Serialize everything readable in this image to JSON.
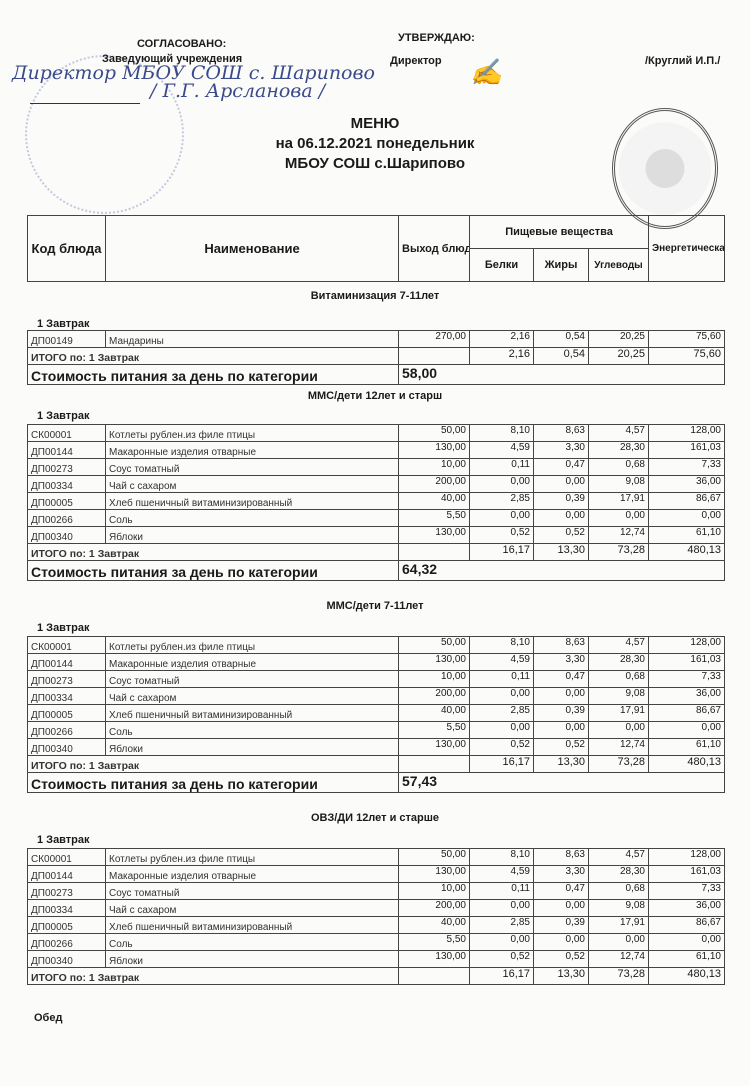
{
  "approval": {
    "agreed_label": "СОГЛАСОВАНО:",
    "agreed_position": "Заведующий  учреждения",
    "agreed_handwritten": "Директор МБОУ СОШ с. Шарипово",
    "agreed_handwritten_name": "/ Г.Г. Арсланова /",
    "approve_label": "УТВЕРЖДАЮ:",
    "approve_position": "Директор",
    "approve_name": "/Круглий И.П./"
  },
  "title": {
    "line1": "МЕНЮ",
    "line2": "на 06.12.2021  понедельник",
    "line3": "МБОУ СОШ с.Шарипово"
  },
  "table_header": {
    "code": "Код блюда",
    "name": "Наименование",
    "yield": "Выход блюда (гр)",
    "nutrients": "Пищевые вещества",
    "protein": "Белки",
    "fat": "Жиры",
    "carbs": "Углеводы",
    "energy": "Энергетическая ценность, ккал"
  },
  "sections": [
    {
      "title": "Витаминизация 7-11лет",
      "meal": "1 Завтрак",
      "rows": [
        [
          "ДП00149",
          "Мандарины",
          "270,00",
          "2,16",
          "0,54",
          "20,25",
          "75,60"
        ]
      ],
      "total_label": "ИТОГО по: 1 Завтрак",
      "total": [
        "2,16",
        "0,54",
        "20,25",
        "75,60"
      ],
      "cost_label": "Стоимость питания за день по категории",
      "cost": "58,00"
    },
    {
      "title": "ММС/дети 12лет и старш",
      "meal": "1 Завтрак",
      "rows": [
        [
          "СК00001",
          "Котлеты рублен.из филе птицы",
          "50,00",
          "8,10",
          "8,63",
          "4,57",
          "128,00"
        ],
        [
          "ДП00144",
          "Макаронные изделия отварные",
          "130,00",
          "4,59",
          "3,30",
          "28,30",
          "161,03"
        ],
        [
          "ДП00273",
          "Соус томатный",
          "10,00",
          "0,11",
          "0,47",
          "0,68",
          "7,33"
        ],
        [
          "ДП00334",
          "Чай с сахаром",
          "200,00",
          "0,00",
          "0,00",
          "9,08",
          "36,00"
        ],
        [
          "ДП00005",
          "Хлеб пшеничный витаминизированный",
          "40,00",
          "2,85",
          "0,39",
          "17,91",
          "86,67"
        ],
        [
          "ДП00266",
          "Соль",
          "5,50",
          "0,00",
          "0,00",
          "0,00",
          "0,00"
        ],
        [
          "ДП00340",
          "Яблоки",
          "130,00",
          "0,52",
          "0,52",
          "12,74",
          "61,10"
        ]
      ],
      "total_label": "ИТОГО по: 1 Завтрак",
      "total": [
        "16,17",
        "13,30",
        "73,28",
        "480,13"
      ],
      "cost_label": "Стоимость питания за день по категории",
      "cost": "64,32"
    },
    {
      "title": "ММС/дети 7-11лет",
      "meal": "1 Завтрак",
      "rows": [
        [
          "СК00001",
          "Котлеты рублен.из филе птицы",
          "50,00",
          "8,10",
          "8,63",
          "4,57",
          "128,00"
        ],
        [
          "ДП00144",
          "Макаронные изделия отварные",
          "130,00",
          "4,59",
          "3,30",
          "28,30",
          "161,03"
        ],
        [
          "ДП00273",
          "Соус томатный",
          "10,00",
          "0,11",
          "0,47",
          "0,68",
          "7,33"
        ],
        [
          "ДП00334",
          "Чай с сахаром",
          "200,00",
          "0,00",
          "0,00",
          "9,08",
          "36,00"
        ],
        [
          "ДП00005",
          "Хлеб пшеничный витаминизированный",
          "40,00",
          "2,85",
          "0,39",
          "17,91",
          "86,67"
        ],
        [
          "ДП00266",
          "Соль",
          "5,50",
          "0,00",
          "0,00",
          "0,00",
          "0,00"
        ],
        [
          "ДП00340",
          "Яблоки",
          "130,00",
          "0,52",
          "0,52",
          "12,74",
          "61,10"
        ]
      ],
      "total_label": "ИТОГО по: 1 Завтрак",
      "total": [
        "16,17",
        "13,30",
        "73,28",
        "480,13"
      ],
      "cost_label": "Стоимость питания за день по категории",
      "cost": "57,43"
    },
    {
      "title": "ОВЗ/ДИ 12лет и старше",
      "meal": "1 Завтрак",
      "rows": [
        [
          "СК00001",
          "Котлеты рублен.из филе птицы",
          "50,00",
          "8,10",
          "8,63",
          "4,57",
          "128,00"
        ],
        [
          "ДП00144",
          "Макаронные изделия отварные",
          "130,00",
          "4,59",
          "3,30",
          "28,30",
          "161,03"
        ],
        [
          "ДП00273",
          "Соус томатный",
          "10,00",
          "0,11",
          "0,47",
          "0,68",
          "7,33"
        ],
        [
          "ДП00334",
          "Чай с сахаром",
          "200,00",
          "0,00",
          "0,00",
          "9,08",
          "36,00"
        ],
        [
          "ДП00005",
          "Хлеб пшеничный витаминизированный",
          "40,00",
          "2,85",
          "0,39",
          "17,91",
          "86,67"
        ],
        [
          "ДП00266",
          "Соль",
          "5,50",
          "0,00",
          "0,00",
          "0,00",
          "0,00"
        ],
        [
          "ДП00340",
          "Яблоки",
          "130,00",
          "0,52",
          "0,52",
          "12,74",
          "61,10"
        ]
      ],
      "total_label": "ИТОГО по: 1 Завтрак",
      "total": [
        "16,17",
        "13,30",
        "73,28",
        "480,13"
      ]
    }
  ],
  "next_meal": "Обед"
}
